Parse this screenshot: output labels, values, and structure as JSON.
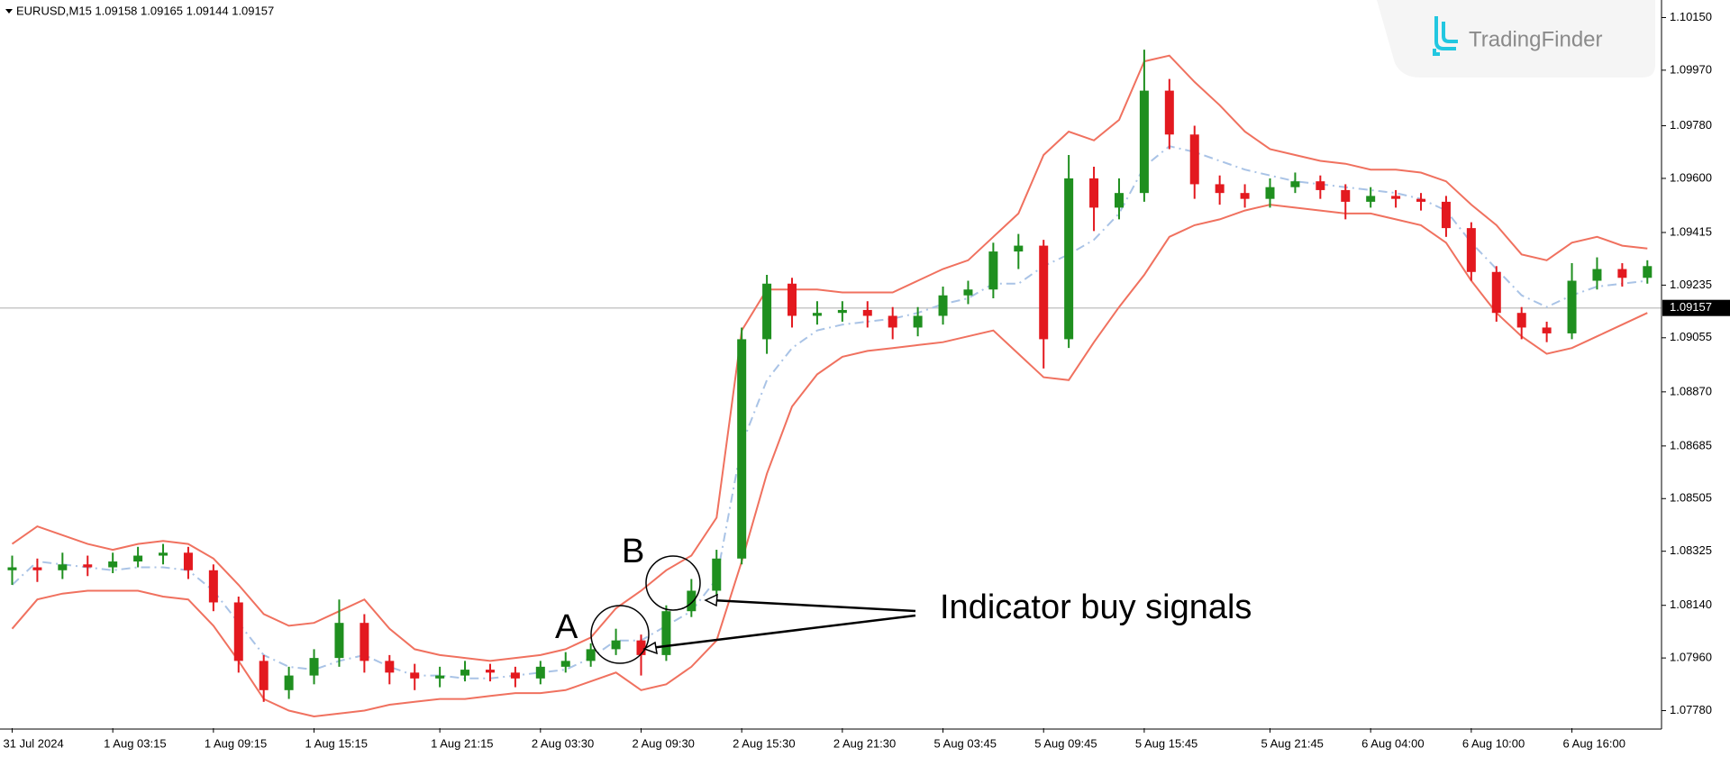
{
  "chart_data": {
    "type": "candlestick",
    "title": "EURUSD,M15  1.09158 1.09165 1.09144 1.09157",
    "watermark": "TradingFinder",
    "categories": [
      "31 Jul 2024",
      null,
      null,
      null,
      "1 Aug 03:15",
      null,
      null,
      null,
      "1 Aug 09:15",
      null,
      null,
      null,
      "1 Aug 15:15",
      null,
      null,
      null,
      null,
      "1 Aug 21:15",
      null,
      null,
      null,
      "2 Aug 03:30",
      null,
      null,
      null,
      "2 Aug 09:30",
      null,
      null,
      null,
      "2 Aug 15:30",
      null,
      null,
      null,
      "2 Aug 21:30",
      null,
      null,
      null,
      "5 Aug 03:45",
      null,
      null,
      null,
      "5 Aug 09:45",
      null,
      null,
      null,
      "5 Aug 15:45",
      null,
      null,
      null,
      null,
      "5 Aug 21:45",
      null,
      null,
      null,
      "6 Aug 04:00",
      null,
      null,
      null,
      "6 Aug 10:00",
      null,
      null,
      null,
      "6 Aug 16:00",
      null,
      null,
      null
    ],
    "candles": {
      "open": [
        1.0826,
        1.0827,
        1.0826,
        1.0828,
        1.0827,
        1.0829,
        1.0831,
        1.0832,
        1.0826,
        1.0815,
        1.0795,
        1.0785,
        1.079,
        1.0796,
        1.0808,
        1.0795,
        1.0791,
        1.0789,
        1.079,
        1.0792,
        1.0791,
        1.0789,
        1.0793,
        1.0795,
        1.0799,
        1.0802,
        1.0797,
        1.0812,
        1.0819,
        1.083,
        1.0905,
        1.0924,
        1.0913,
        1.0914,
        1.0915,
        1.0913,
        1.0909,
        1.0913,
        1.092,
        1.0922,
        1.0935,
        1.0937,
        1.0905,
        1.096,
        1.095,
        1.0955,
        1.099,
        1.0975,
        1.0958,
        1.0955,
        1.0953,
        1.0957,
        1.0959,
        1.0956,
        1.0952,
        1.0954,
        1.0953,
        1.0952,
        1.0943,
        1.0928,
        1.0914,
        1.0909,
        1.0907,
        1.0925,
        1.0929,
        1.0926
      ],
      "high": [
        1.0831,
        1.083,
        1.0832,
        1.0831,
        1.0832,
        1.0834,
        1.0835,
        1.0834,
        1.0828,
        1.0817,
        1.0797,
        1.0793,
        1.0799,
        1.0816,
        1.0811,
        1.0797,
        1.0794,
        1.0793,
        1.0795,
        1.0794,
        1.0793,
        1.0795,
        1.0798,
        1.0801,
        1.0806,
        1.0804,
        1.0814,
        1.0823,
        1.0833,
        1.0909,
        1.0927,
        1.0926,
        1.0918,
        1.0918,
        1.0918,
        1.0916,
        1.0916,
        1.0923,
        1.0925,
        1.0938,
        1.0941,
        1.0939,
        1.0968,
        1.0964,
        1.096,
        1.1004,
        1.0994,
        1.0978,
        1.0961,
        1.0958,
        1.096,
        1.0962,
        1.0961,
        1.0958,
        1.0957,
        1.0956,
        1.0955,
        1.0954,
        1.0945,
        1.093,
        1.0916,
        1.0911,
        1.0931,
        1.0933,
        1.0931,
        1.0932
      ],
      "low": [
        1.0821,
        1.0822,
        1.0823,
        1.0824,
        1.0825,
        1.0827,
        1.0828,
        1.0823,
        1.0812,
        1.0791,
        1.0781,
        1.0782,
        1.0787,
        1.0793,
        1.0791,
        1.0787,
        1.0785,
        1.0786,
        1.0788,
        1.0788,
        1.0786,
        1.0787,
        1.0791,
        1.0793,
        1.0797,
        1.079,
        1.0795,
        1.081,
        1.0817,
        1.0828,
        1.09,
        1.0909,
        1.091,
        1.0911,
        1.0909,
        1.0905,
        1.0906,
        1.091,
        1.0917,
        1.0919,
        1.0929,
        1.0895,
        1.0902,
        1.0942,
        1.0946,
        1.0952,
        1.097,
        1.0953,
        1.0951,
        1.095,
        1.095,
        1.0955,
        1.0953,
        1.0946,
        1.095,
        1.095,
        1.0949,
        1.094,
        1.0925,
        1.0911,
        1.0905,
        1.0904,
        1.0905,
        1.0922,
        1.0923,
        1.0924
      ],
      "close": [
        1.0827,
        1.0826,
        1.0828,
        1.0827,
        1.0829,
        1.0831,
        1.0832,
        1.0826,
        1.0815,
        1.0795,
        1.0785,
        1.079,
        1.0796,
        1.0808,
        1.0795,
        1.0791,
        1.0789,
        1.079,
        1.0792,
        1.0791,
        1.0789,
        1.0793,
        1.0795,
        1.0799,
        1.0802,
        1.0797,
        1.0812,
        1.0819,
        1.083,
        1.0905,
        1.0924,
        1.0913,
        1.0914,
        1.0915,
        1.0913,
        1.0909,
        1.0913,
        1.092,
        1.0922,
        1.0935,
        1.0937,
        1.0905,
        1.096,
        1.095,
        1.0955,
        1.099,
        1.0975,
        1.0958,
        1.0955,
        1.0953,
        1.0957,
        1.0959,
        1.0956,
        1.0952,
        1.0954,
        1.0953,
        1.0952,
        1.0943,
        1.0928,
        1.0914,
        1.0909,
        1.0907,
        1.0925,
        1.0929,
        1.0926,
        1.093
      ]
    },
    "up_color": "#1f8f1f",
    "down_color": "#e3191f",
    "series": [
      {
        "color": "#f0715f",
        "line_style": "solid",
        "values": [
          1.0835,
          1.0841,
          1.0838,
          1.0835,
          1.0833,
          1.0835,
          1.0836,
          1.0835,
          1.083,
          1.0821,
          1.0811,
          1.0807,
          1.0808,
          1.0812,
          1.0816,
          1.0806,
          1.0799,
          1.0797,
          1.0796,
          1.0795,
          1.0796,
          1.0797,
          1.0799,
          1.0803,
          1.0813,
          1.0819,
          1.0826,
          1.0831,
          1.0844,
          1.0908,
          1.0922,
          1.0922,
          1.0922,
          1.0921,
          1.0921,
          1.0921,
          1.0925,
          1.0929,
          1.0932,
          1.094,
          1.0948,
          1.0968,
          1.0976,
          1.0973,
          1.098,
          1.1,
          1.1002,
          1.0993,
          1.0985,
          1.0976,
          1.097,
          1.0968,
          1.0966,
          1.0965,
          1.0963,
          1.0963,
          1.0962,
          1.0959,
          1.0951,
          1.0944,
          1.0934,
          1.0932,
          1.0938,
          1.094,
          1.0937,
          1.0936
        ]
      },
      {
        "color": "#a9c3e6",
        "line_style": "dashdot",
        "values": [
          1.0821,
          1.0829,
          1.0828,
          1.0827,
          1.0826,
          1.0827,
          1.0827,
          1.0826,
          1.0819,
          1.0808,
          1.0797,
          1.0793,
          1.0792,
          1.0795,
          1.0797,
          1.0793,
          1.079,
          1.079,
          1.0789,
          1.0789,
          1.079,
          1.0791,
          1.0792,
          1.0796,
          1.0802,
          1.0802,
          1.0807,
          1.0812,
          1.0823,
          1.0869,
          1.0891,
          1.0902,
          1.0908,
          1.091,
          1.0911,
          1.0912,
          1.0914,
          1.0917,
          1.0919,
          1.0924,
          1.0924,
          1.093,
          1.0934,
          1.0939,
          1.0948,
          1.0964,
          1.0971,
          1.0969,
          1.0966,
          1.0963,
          1.0961,
          1.0959,
          1.0958,
          1.0957,
          1.0956,
          1.0955,
          1.0953,
          1.0949,
          1.0938,
          1.0929,
          1.092,
          1.0916,
          1.092,
          1.0923,
          1.0924,
          1.0925
        ]
      },
      {
        "color": "#f0715f",
        "line_style": "solid",
        "values": [
          1.0806,
          1.0816,
          1.0818,
          1.0819,
          1.0819,
          1.0819,
          1.0817,
          1.0816,
          1.0807,
          1.0795,
          1.0782,
          1.0778,
          1.0776,
          1.0777,
          1.0778,
          1.078,
          1.0781,
          1.0782,
          1.0782,
          1.0783,
          1.0784,
          1.0784,
          1.0785,
          1.0788,
          1.0791,
          1.0785,
          1.0787,
          1.0793,
          1.0802,
          1.0829,
          1.0859,
          1.0882,
          1.0893,
          1.0899,
          1.0901,
          1.0902,
          1.0903,
          1.0904,
          1.0906,
          1.0908,
          1.09,
          1.0892,
          1.0891,
          1.0904,
          1.0916,
          1.0927,
          1.094,
          1.0944,
          1.0946,
          1.0949,
          1.0951,
          1.095,
          1.0949,
          1.0948,
          1.0948,
          1.0946,
          1.0944,
          1.0938,
          1.0925,
          1.0914,
          1.0906,
          1.09,
          1.0902,
          1.0906,
          1.091,
          1.0914
        ]
      }
    ],
    "current_price": 1.09157,
    "ylim": [
      1.0772,
      1.1021
    ],
    "yticks": [
      {
        "value": 1.1015,
        "label": "1.10150"
      },
      {
        "value": 1.0997,
        "label": "1.09970"
      },
      {
        "value": 1.0978,
        "label": "1.09780"
      },
      {
        "value": 1.096,
        "label": "1.09600"
      },
      1.09415,
      1.09235,
      1.09055,
      {
        "value": 1.0887,
        "label": "1.08870"
      },
      1.08685,
      1.08505,
      1.08325,
      {
        "value": 1.0814,
        "label": "1.08140"
      },
      {
        "value": 1.0796,
        "label": "1.07960"
      },
      {
        "value": 1.0778,
        "label": "1.07780"
      }
    ],
    "grid": false,
    "annotations": [
      "A",
      "B",
      "Indicator buy signals"
    ]
  }
}
